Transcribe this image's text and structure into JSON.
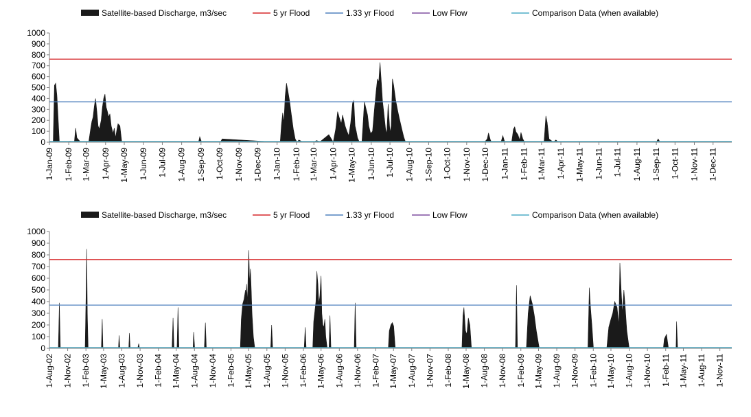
{
  "colors": {
    "discharge": "#1a1a1a",
    "flood5": "#d62728",
    "flood133": "#4f81bd",
    "lowflow": "#7f4f9f",
    "comparison": "#4bacc6",
    "axis": "#808080"
  },
  "chart_data": [
    {
      "type": "area",
      "legend": {
        "placement": "top",
        "entries": [
          {
            "name": "Satellite-based Discharge, m3/sec",
            "symbol": "bar"
          },
          {
            "name": "5 yr Flood",
            "symbol": "line"
          },
          {
            "name": "1.33 yr Flood",
            "symbol": "line"
          },
          {
            "name": "Low Flow",
            "symbol": "line"
          },
          {
            "name": "Comparison Data (when available)",
            "symbol": "line"
          }
        ]
      },
      "ylim": [
        0,
        1000
      ],
      "yticks": [
        0,
        100,
        200,
        300,
        400,
        500,
        600,
        700,
        800,
        900,
        1000
      ],
      "xlim": [
        "2009-01-01",
        "2011-12-31"
      ],
      "xticks": [
        "1-Jan-09",
        "1-Feb-09",
        "1-Mar-09",
        "1-Apr-09",
        "1-May-09",
        "1-Jun-09",
        "1-Jul-09",
        "1-Aug-09",
        "1-Sep-09",
        "1-Oct-09",
        "1-Nov-09",
        "1-Dec-09",
        "1-Jan-10",
        "1-Feb-10",
        "1-Mar-10",
        "1-Apr-10",
        "1-May-10",
        "1-Jun-10",
        "1-Jul-10",
        "1-Aug-10",
        "1-Sep-10",
        "1-Oct-10",
        "1-Nov-10",
        "1-Dec-10",
        "1-Jan-11",
        "1-Feb-11",
        "1-Mar-11",
        "1-Apr-11",
        "1-May-11",
        "1-Jun-11",
        "1-Jul-11",
        "1-Aug-11",
        "1-Sep-11",
        "1-Oct-11",
        "1-Nov-11",
        "1-Dec-11"
      ],
      "xtick_dates": [
        "2009-01-01",
        "2009-02-01",
        "2009-03-01",
        "2009-04-01",
        "2009-05-01",
        "2009-06-01",
        "2009-07-01",
        "2009-08-01",
        "2009-09-01",
        "2009-10-01",
        "2009-11-01",
        "2009-12-01",
        "2010-01-01",
        "2010-02-01",
        "2010-03-01",
        "2010-04-01",
        "2010-05-01",
        "2010-06-01",
        "2010-07-01",
        "2010-08-01",
        "2010-09-01",
        "2010-10-01",
        "2010-11-01",
        "2010-12-01",
        "2011-01-01",
        "2011-02-01",
        "2011-03-01",
        "2011-04-01",
        "2011-05-01",
        "2011-06-01",
        "2011-07-01",
        "2011-08-01",
        "2011-09-01",
        "2011-10-01",
        "2011-11-01",
        "2011-12-01"
      ],
      "thresholds": {
        "flood5": 760,
        "flood133": 370,
        "lowflow": 5
      },
      "series": [
        {
          "name": "Satellite-based Discharge, m3/sec",
          "x": [
            "2009-01-01",
            "2009-01-07",
            "2009-01-09",
            "2009-01-11",
            "2009-01-13",
            "2009-01-17",
            "2009-02-01",
            "2009-02-03",
            "2009-02-05",
            "2009-02-10",
            "2009-02-12",
            "2009-02-14",
            "2009-02-20",
            "2009-03-05",
            "2009-03-08",
            "2009-03-10",
            "2009-03-12",
            "2009-03-14",
            "2009-03-16",
            "2009-03-18",
            "2009-03-20",
            "2009-03-22",
            "2009-03-25",
            "2009-03-27",
            "2009-03-29",
            "2009-03-31",
            "2009-04-02",
            "2009-04-04",
            "2009-04-06",
            "2009-04-08",
            "2009-04-10",
            "2009-04-13",
            "2009-04-15",
            "2009-04-17",
            "2009-04-19",
            "2009-04-21",
            "2009-04-24",
            "2009-04-27",
            "2009-05-05",
            "2009-08-28",
            "2009-08-30",
            "2009-09-02",
            "2009-10-02",
            "2009-10-05",
            "2010-01-03",
            "2010-01-06",
            "2010-01-08",
            "2010-01-10",
            "2010-01-12",
            "2010-01-14",
            "2010-01-16",
            "2010-01-18",
            "2010-01-21",
            "2010-01-24",
            "2010-01-27",
            "2010-01-30",
            "2010-02-02",
            "2010-02-05",
            "2010-02-12",
            "2010-03-01",
            "2010-03-05",
            "2010-03-08",
            "2010-03-10",
            "2010-03-25",
            "2010-03-28",
            "2010-04-01",
            "2010-04-05",
            "2010-04-08",
            "2010-04-11",
            "2010-04-14",
            "2010-04-16",
            "2010-04-18",
            "2010-04-20",
            "2010-04-23",
            "2010-04-26",
            "2010-04-29",
            "2010-05-02",
            "2010-05-04",
            "2010-05-06",
            "2010-05-08",
            "2010-05-10",
            "2010-05-13",
            "2010-05-17",
            "2010-05-19",
            "2010-05-21",
            "2010-05-23",
            "2010-05-26",
            "2010-05-28",
            "2010-05-31",
            "2010-06-03",
            "2010-06-06",
            "2010-06-09",
            "2010-06-11",
            "2010-06-13",
            "2010-06-15",
            "2010-06-17",
            "2010-06-19",
            "2010-06-21",
            "2010-06-24",
            "2010-06-26",
            "2010-06-28",
            "2010-07-01",
            "2010-07-03",
            "2010-07-05",
            "2010-07-07",
            "2010-07-10",
            "2010-07-13",
            "2010-07-16",
            "2010-07-20",
            "2010-07-23",
            "2010-07-26",
            "2010-07-30",
            "2010-11-28",
            "2010-12-01",
            "2010-12-04",
            "2010-12-06",
            "2010-12-09",
            "2010-12-11",
            "2010-12-26",
            "2010-12-29",
            "2011-01-01",
            "2011-01-12",
            "2011-01-15",
            "2011-01-17",
            "2011-01-19",
            "2011-01-22",
            "2011-01-25",
            "2011-01-27",
            "2011-01-30",
            "2011-02-02",
            "2011-02-07",
            "2011-02-25",
            "2011-03-03",
            "2011-03-05",
            "2011-03-08",
            "2011-03-10",
            "2011-03-13",
            "2011-03-20",
            "2011-03-24",
            "2011-03-28",
            "2011-09-01",
            "2011-09-04",
            "2011-09-07"
          ],
          "y": [
            0,
            0,
            520,
            540,
            430,
            0,
            0,
            10,
            0,
            0,
            130,
            40,
            0,
            0,
            120,
            190,
            230,
            330,
            400,
            280,
            150,
            120,
            200,
            320,
            400,
            440,
            320,
            280,
            230,
            260,
            150,
            80,
            130,
            40,
            110,
            170,
            150,
            0,
            0,
            0,
            50,
            0,
            0,
            30,
            0,
            0,
            160,
            270,
            180,
            420,
            540,
            480,
            380,
            250,
            120,
            30,
            0,
            20,
            0,
            0,
            15,
            10,
            0,
            70,
            40,
            0,
            120,
            280,
            220,
            170,
            250,
            200,
            150,
            100,
            60,
            180,
            360,
            380,
            150,
            100,
            40,
            0,
            0,
            180,
            370,
            320,
            250,
            150,
            80,
            100,
            300,
            480,
            580,
            550,
            730,
            560,
            380,
            280,
            120,
            80,
            350,
            90,
            150,
            580,
            520,
            390,
            300,
            220,
            120,
            50,
            0,
            0,
            0,
            10,
            30,
            85,
            20,
            0,
            0,
            60,
            0,
            0,
            120,
            140,
            95,
            70,
            20,
            90,
            30,
            0,
            0,
            0,
            0,
            0,
            240,
            180,
            30,
            0,
            20,
            0,
            0,
            30,
            0
          ]
        }
      ]
    },
    {
      "type": "area",
      "legend": {
        "placement": "top",
        "entries": [
          {
            "name": "Satellite-based Discharge, m3/sec",
            "symbol": "bar"
          },
          {
            "name": "5 yr Flood",
            "symbol": "line"
          },
          {
            "name": "1.33 yr Flood",
            "symbol": "line"
          },
          {
            "name": "Low Flow",
            "symbol": "line"
          },
          {
            "name": "Comparison Data (when available)",
            "symbol": "line"
          }
        ]
      },
      "ylim": [
        0,
        1000
      ],
      "yticks": [
        0,
        100,
        200,
        300,
        400,
        500,
        600,
        700,
        800,
        900,
        1000
      ],
      "xlim": [
        "2002-08-01",
        "2011-12-31"
      ],
      "xticks": [
        "1-Aug-02",
        "1-Nov-02",
        "1-Feb-03",
        "1-May-03",
        "1-Aug-03",
        "1-Nov-03",
        "1-Feb-04",
        "1-May-04",
        "1-Aug-04",
        "1-Nov-04",
        "1-Feb-05",
        "1-May-05",
        "1-Aug-05",
        "1-Nov-05",
        "1-Feb-06",
        "1-May-06",
        "1-Aug-06",
        "1-Nov-06",
        "1-Feb-07",
        "1-May-07",
        "1-Aug-07",
        "1-Nov-07",
        "1-Feb-08",
        "1-May-08",
        "1-Aug-08",
        "1-Nov-08",
        "1-Feb-09",
        "1-May-09",
        "1-Aug-09",
        "1-Nov-09",
        "1-Feb-10",
        "1-May-10",
        "1-Aug-10",
        "1-Nov-10",
        "1-Feb-11",
        "1-May-11",
        "1-Aug-11",
        "1-Nov-11"
      ],
      "xtick_dates": [
        "2002-08-01",
        "2002-11-01",
        "2003-02-01",
        "2003-05-01",
        "2003-08-01",
        "2003-11-01",
        "2004-02-01",
        "2004-05-01",
        "2004-08-01",
        "2004-11-01",
        "2005-02-01",
        "2005-05-01",
        "2005-08-01",
        "2005-11-01",
        "2006-02-01",
        "2006-05-01",
        "2006-08-01",
        "2006-11-01",
        "2007-02-01",
        "2007-05-01",
        "2007-08-01",
        "2007-11-01",
        "2008-02-01",
        "2008-05-01",
        "2008-08-01",
        "2008-11-01",
        "2009-02-01",
        "2009-05-01",
        "2009-08-01",
        "2009-11-01",
        "2010-02-01",
        "2010-05-01",
        "2010-08-01",
        "2010-11-01",
        "2011-02-01",
        "2011-05-01",
        "2011-08-01",
        "2011-11-01"
      ],
      "thresholds": {
        "flood5": 760,
        "flood133": 370,
        "lowflow": 5
      },
      "series": [
        {
          "name": "Satellite-based Discharge, m3/sec",
          "x": [
            "2002-08-01",
            "2002-09-15",
            "2002-09-20",
            "2002-09-25",
            "2003-01-28",
            "2003-02-02",
            "2003-02-05",
            "2003-02-08",
            "2003-02-12",
            "2003-04-20",
            "2003-04-24",
            "2003-04-28",
            "2003-07-15",
            "2003-07-18",
            "2003-07-22",
            "2003-09-05",
            "2003-09-08",
            "2003-09-12",
            "2003-10-20",
            "2003-10-25",
            "2003-10-29",
            "2004-04-10",
            "2004-04-15",
            "2004-04-20",
            "2004-05-05",
            "2004-05-10",
            "2004-05-15",
            "2004-07-25",
            "2004-07-28",
            "2004-08-02",
            "2004-09-20",
            "2004-09-25",
            "2004-09-30",
            "2005-03-20",
            "2005-03-25",
            "2005-04-01",
            "2005-04-08",
            "2005-04-15",
            "2005-04-18",
            "2005-04-21",
            "2005-04-25",
            "2005-04-28",
            "2005-05-02",
            "2005-05-06",
            "2005-05-10",
            "2005-05-14",
            "2005-05-18",
            "2005-05-25",
            "2005-06-01",
            "2005-08-20",
            "2005-08-25",
            "2005-08-30",
            "2006-02-05",
            "2006-02-10",
            "2006-02-15",
            "2006-03-20",
            "2006-03-25",
            "2006-04-05",
            "2006-04-10",
            "2006-04-15",
            "2006-04-20",
            "2006-04-25",
            "2006-05-01",
            "2006-05-05",
            "2006-05-10",
            "2006-05-15",
            "2006-05-20",
            "2006-05-25",
            "2006-06-01",
            "2006-06-10",
            "2006-06-15",
            "2006-06-20",
            "2006-10-15",
            "2006-10-20",
            "2006-10-25",
            "2007-04-05",
            "2007-04-10",
            "2007-04-18",
            "2007-04-25",
            "2007-05-02",
            "2007-05-10",
            "2008-04-10",
            "2008-04-15",
            "2008-04-20",
            "2008-04-28",
            "2008-05-05",
            "2008-05-12",
            "2008-05-20",
            "2008-05-28",
            "2009-01-05",
            "2009-01-10",
            "2009-01-15",
            "2009-03-01",
            "2009-03-10",
            "2009-03-20",
            "2009-03-31",
            "2009-04-10",
            "2009-04-20",
            "2009-05-05",
            "2010-01-05",
            "2010-01-12",
            "2010-01-18",
            "2010-01-25",
            "2010-02-02",
            "2010-04-10",
            "2010-04-20",
            "2010-05-01",
            "2010-05-10",
            "2010-05-20",
            "2010-06-01",
            "2010-06-10",
            "2010-06-15",
            "2010-06-22",
            "2010-06-28",
            "2010-07-05",
            "2010-07-12",
            "2010-07-20",
            "2010-08-01",
            "2011-01-20",
            "2011-01-25",
            "2011-02-05",
            "2011-02-15",
            "2011-03-25",
            "2011-03-28",
            "2011-04-02"
          ],
          "y": [
            0,
            0,
            390,
            0,
            0,
            500,
            850,
            300,
            0,
            0,
            250,
            0,
            0,
            110,
            0,
            0,
            130,
            0,
            0,
            40,
            0,
            0,
            260,
            0,
            0,
            350,
            0,
            0,
            140,
            0,
            0,
            220,
            0,
            0,
            250,
            380,
            420,
            500,
            450,
            550,
            380,
            600,
            840,
            550,
            680,
            500,
            300,
            100,
            0,
            0,
            200,
            0,
            0,
            180,
            0,
            0,
            230,
            400,
            660,
            550,
            380,
            450,
            620,
            300,
            200,
            180,
            250,
            100,
            0,
            0,
            280,
            0,
            0,
            390,
            0,
            0,
            150,
            200,
            220,
            190,
            0,
            0,
            280,
            350,
            150,
            120,
            260,
            200,
            0,
            0,
            540,
            0,
            0,
            300,
            450,
            380,
            280,
            150,
            0,
            0,
            520,
            350,
            200,
            0,
            0,
            180,
            250,
            300,
            400,
            350,
            200,
            730,
            480,
            300,
            500,
            350,
            150,
            0,
            0,
            80,
            120,
            0,
            0,
            230,
            0
          ]
        }
      ]
    }
  ]
}
